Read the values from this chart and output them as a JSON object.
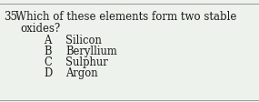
{
  "question_number": "35.",
  "question_text_line1": " Which of these elements form two stable",
  "question_text_line2": "oxides?",
  "options": [
    {
      "letter": "A",
      "text": "Silicon"
    },
    {
      "letter": "B",
      "text": "Beryllium"
    },
    {
      "letter": "C",
      "text": "Sulphur"
    },
    {
      "letter": "D",
      "text": "Argon"
    }
  ],
  "bg_color": "#eef2ec",
  "text_color": "#1a1a1a",
  "border_color": "#999999",
  "font_size_question": 8.5,
  "font_size_options": 8.3
}
